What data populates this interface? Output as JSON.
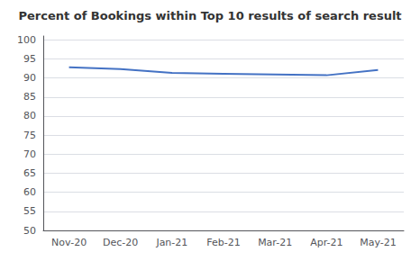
{
  "chart_data": {
    "type": "line",
    "title": "Percent of Bookings within Top 10 results of search result",
    "categories": [
      "Nov-20",
      "Dec-20",
      "Jan-21",
      "Feb-21",
      "Mar-21",
      "Apr-21",
      "May-21"
    ],
    "values": [
      92.8,
      92.3,
      91.3,
      91.1,
      90.9,
      90.7,
      92.1
    ],
    "color": "#4472C4",
    "ylim": [
      50,
      101
    ],
    "yticks": [
      50,
      55,
      60,
      65,
      70,
      75,
      80,
      85,
      90,
      95,
      100
    ],
    "grid": true
  }
}
